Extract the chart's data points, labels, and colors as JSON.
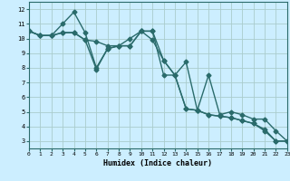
{
  "xlabel": "Humidex (Indice chaleur)",
  "bg_color": "#cceeff",
  "grid_color": "#aacccc",
  "line_color": "#2a6b6b",
  "series": [
    {
      "x": [
        0,
        1,
        2,
        3,
        4,
        5,
        6,
        7,
        8,
        9,
        10,
        11,
        12,
        13,
        14,
        15,
        16,
        17,
        18,
        19,
        20,
        21,
        22,
        23
      ],
      "y": [
        10.5,
        10.2,
        10.2,
        10.4,
        10.4,
        9.9,
        9.8,
        9.5,
        9.5,
        9.5,
        10.5,
        10.5,
        7.5,
        7.5,
        5.2,
        5.1,
        4.8,
        4.7,
        4.6,
        4.4,
        4.2,
        3.7,
        3.0,
        3.0
      ]
    },
    {
      "x": [
        0,
        1,
        2,
        3,
        4,
        5,
        6,
        7,
        8,
        9,
        10,
        11,
        12,
        13,
        14,
        15,
        16,
        17,
        18,
        19,
        20,
        21,
        22,
        23
      ],
      "y": [
        10.5,
        10.2,
        10.2,
        11.0,
        11.8,
        10.4,
        8.0,
        9.3,
        9.5,
        10.0,
        10.5,
        10.5,
        8.5,
        7.5,
        5.2,
        5.1,
        4.8,
        4.7,
        4.6,
        4.4,
        4.2,
        3.8,
        3.0,
        3.0
      ]
    },
    {
      "x": [
        0,
        1,
        2,
        3,
        4,
        5,
        6,
        7,
        8,
        9,
        10,
        11,
        12,
        13,
        14,
        15,
        16,
        17,
        18,
        19,
        20,
        21,
        22,
        23
      ],
      "y": [
        10.5,
        10.2,
        10.2,
        10.4,
        10.4,
        9.9,
        7.9,
        9.3,
        9.5,
        9.5,
        10.5,
        9.9,
        8.5,
        7.5,
        8.4,
        5.1,
        7.5,
        4.8,
        5.0,
        4.8,
        4.5,
        4.5,
        3.7,
        3.0
      ]
    }
  ],
  "xlim": [
    0,
    23
  ],
  "ylim": [
    2.5,
    12.5
  ],
  "yticks": [
    3,
    4,
    5,
    6,
    7,
    8,
    9,
    10,
    11,
    12
  ],
  "xticks": [
    0,
    1,
    2,
    3,
    4,
    5,
    6,
    7,
    8,
    9,
    10,
    11,
    12,
    13,
    14,
    15,
    16,
    17,
    18,
    19,
    20,
    21,
    22,
    23
  ],
  "marker": "D",
  "markersize": 2.5,
  "linewidth": 1.0
}
